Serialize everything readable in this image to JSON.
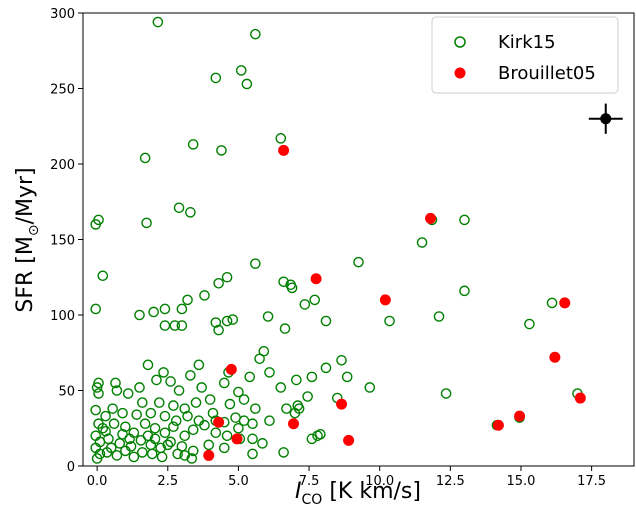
{
  "chart_data": {
    "type": "scatter",
    "xlabel_main": "I",
    "xlabel_sub": "CO",
    "xlabel_unit": " [K km/s]",
    "ylabel_main": "SFR [M",
    "ylabel_sub": "⊙",
    "ylabel_unit": "/Myr]",
    "xlim": [
      -0.5,
      19.0
    ],
    "ylim": [
      0,
      300
    ],
    "xticks": [
      0.0,
      2.5,
      5.0,
      7.5,
      10.0,
      12.5,
      15.0,
      17.5
    ],
    "xtick_labels": [
      "0.0",
      "2.5",
      "5.0",
      "7.5",
      "10.0",
      "12.5",
      "15.0",
      "17.5"
    ],
    "yticks": [
      0,
      50,
      100,
      150,
      200,
      250,
      300
    ],
    "ytick_labels": [
      "0",
      "50",
      "100",
      "150",
      "200",
      "250",
      "300"
    ],
    "legend_position": "top-right",
    "grid": false,
    "series": [
      {
        "name": "Kirk15",
        "marker": "open-circle",
        "color": "#008000",
        "points": [
          [
            2.15,
            294
          ],
          [
            5.6,
            286
          ],
          [
            5.1,
            262
          ],
          [
            4.2,
            257
          ],
          [
            5.3,
            253
          ],
          [
            6.5,
            217
          ],
          [
            3.4,
            213
          ],
          [
            4.4,
            209
          ],
          [
            1.7,
            204
          ],
          [
            0.05,
            163
          ],
          [
            -0.05,
            160
          ],
          [
            1.75,
            161
          ],
          [
            2.9,
            171
          ],
          [
            3.3,
            168
          ],
          [
            11.85,
            163
          ],
          [
            13.0,
            163
          ],
          [
            11.5,
            148
          ],
          [
            9.25,
            135
          ],
          [
            5.6,
            134
          ],
          [
            0.2,
            126
          ],
          [
            4.6,
            125
          ],
          [
            4.3,
            121
          ],
          [
            6.6,
            122
          ],
          [
            6.85,
            120
          ],
          [
            6.9,
            118
          ],
          [
            13.0,
            116
          ],
          [
            3.2,
            110
          ],
          [
            3.8,
            113
          ],
          [
            7.7,
            110
          ],
          [
            7.35,
            107
          ],
          [
            16.1,
            108
          ],
          [
            -0.05,
            104
          ],
          [
            4.6,
            96
          ],
          [
            4.8,
            97
          ],
          [
            2.0,
            102
          ],
          [
            1.5,
            100
          ],
          [
            2.4,
            104
          ],
          [
            3.0,
            104
          ],
          [
            6.05,
            99
          ],
          [
            4.3,
            90
          ],
          [
            4.2,
            95
          ],
          [
            3.0,
            93
          ],
          [
            2.4,
            93
          ],
          [
            2.75,
            93
          ],
          [
            6.65,
            91
          ],
          [
            8.1,
            96
          ],
          [
            10.35,
            96
          ],
          [
            12.1,
            99
          ],
          [
            15.3,
            94
          ],
          [
            5.9,
            76
          ],
          [
            5.75,
            71
          ],
          [
            8.65,
            70
          ],
          [
            7.6,
            59
          ],
          [
            1.8,
            67
          ],
          [
            3.6,
            67
          ],
          [
            7.05,
            57
          ],
          [
            8.85,
            59
          ],
          [
            9.65,
            52
          ],
          [
            12.35,
            48
          ],
          [
            0.05,
            55
          ],
          [
            0.0,
            52
          ],
          [
            0.05,
            48
          ],
          [
            0.7,
            50
          ],
          [
            0.65,
            55
          ],
          [
            1.1,
            48
          ],
          [
            1.5,
            52
          ],
          [
            2.6,
            56
          ],
          [
            2.9,
            50
          ],
          [
            3.3,
            60
          ],
          [
            3.7,
            52
          ],
          [
            4.5,
            55
          ],
          [
            5.0,
            49
          ],
          [
            5.2,
            44
          ],
          [
            5.4,
            59
          ],
          [
            6.1,
            62
          ],
          [
            6.5,
            52
          ],
          [
            7.45,
            46
          ],
          [
            8.1,
            65
          ],
          [
            8.5,
            45
          ],
          [
            2.2,
            42
          ],
          [
            2.7,
            40
          ],
          [
            3.1,
            38
          ],
          [
            3.5,
            42
          ],
          [
            4.0,
            44
          ],
          [
            4.7,
            41
          ],
          [
            5.6,
            38
          ],
          [
            6.7,
            38
          ],
          [
            7.15,
            38
          ],
          [
            -0.05,
            37
          ],
          [
            0.3,
            33
          ],
          [
            0.9,
            35
          ],
          [
            1.4,
            34
          ],
          [
            1.9,
            35
          ],
          [
            2.4,
            33
          ],
          [
            2.8,
            30
          ],
          [
            3.2,
            33
          ],
          [
            3.6,
            30
          ],
          [
            4.1,
            35
          ],
          [
            4.5,
            29
          ],
          [
            4.9,
            32
          ],
          [
            5.2,
            30
          ],
          [
            5.5,
            28
          ],
          [
            6.1,
            30
          ],
          [
            7.0,
            35
          ],
          [
            7.1,
            40
          ],
          [
            7.6,
            18
          ],
          [
            7.9,
            21
          ],
          [
            14.15,
            27
          ],
          [
            14.95,
            32
          ],
          [
            17.0,
            48
          ],
          [
            0.05,
            28
          ],
          [
            0.2,
            25
          ],
          [
            0.6,
            28
          ],
          [
            1.0,
            26
          ],
          [
            1.3,
            22
          ],
          [
            1.7,
            28
          ],
          [
            2.05,
            25
          ],
          [
            2.4,
            22
          ],
          [
            2.7,
            26
          ],
          [
            3.1,
            20
          ],
          [
            3.4,
            24
          ],
          [
            3.8,
            27
          ],
          [
            4.2,
            22
          ],
          [
            4.6,
            20
          ],
          [
            5.0,
            25
          ],
          [
            5.5,
            18
          ],
          [
            5.85,
            15
          ],
          [
            7.8,
            20
          ],
          [
            -0.05,
            20
          ],
          [
            0.1,
            16
          ],
          [
            0.4,
            18
          ],
          [
            0.8,
            15
          ],
          [
            1.2,
            13
          ],
          [
            1.55,
            17
          ],
          [
            1.9,
            14
          ],
          [
            2.25,
            12
          ],
          [
            2.6,
            16
          ],
          [
            3.0,
            13
          ],
          [
            3.4,
            10
          ],
          [
            3.95,
            14
          ],
          [
            4.5,
            12
          ],
          [
            5.5,
            8
          ],
          [
            6.6,
            9
          ],
          [
            -0.05,
            12
          ],
          [
            0.1,
            8
          ],
          [
            0.35,
            9
          ],
          [
            0.7,
            7
          ],
          [
            1.0,
            10
          ],
          [
            1.3,
            6
          ],
          [
            1.6,
            9
          ],
          [
            1.95,
            8
          ],
          [
            2.3,
            6
          ],
          [
            3.1,
            7
          ],
          [
            3.35,
            5
          ],
          [
            0.0,
            5
          ],
          [
            0.55,
            38
          ],
          [
            1.6,
            42
          ],
          [
            2.1,
            57
          ],
          [
            2.35,
            62
          ],
          [
            4.65,
            62
          ],
          [
            5.05,
            18
          ],
          [
            4.2,
            30
          ],
          [
            0.3,
            23
          ],
          [
            0.5,
            12
          ],
          [
            0.9,
            21
          ],
          [
            1.15,
            18
          ],
          [
            1.8,
            20
          ],
          [
            2.05,
            18
          ],
          [
            2.5,
            14
          ],
          [
            2.85,
            8
          ]
        ]
      },
      {
        "name": "Brouillet05",
        "marker": "filled-circle",
        "color": "#ff0000",
        "points": [
          [
            6.6,
            209
          ],
          [
            11.8,
            164
          ],
          [
            7.75,
            124
          ],
          [
            10.2,
            110
          ],
          [
            16.55,
            108
          ],
          [
            16.2,
            72
          ],
          [
            4.75,
            64
          ],
          [
            8.65,
            41
          ],
          [
            17.1,
            45
          ],
          [
            14.95,
            33
          ],
          [
            14.2,
            27
          ],
          [
            6.95,
            28
          ],
          [
            4.3,
            29
          ],
          [
            4.95,
            18
          ],
          [
            8.9,
            17
          ],
          [
            3.95,
            7
          ]
        ]
      }
    ],
    "error_point": {
      "x": 18.0,
      "y": 230,
      "xerr": 0.6,
      "yerr": 10,
      "color": "#000000"
    }
  }
}
